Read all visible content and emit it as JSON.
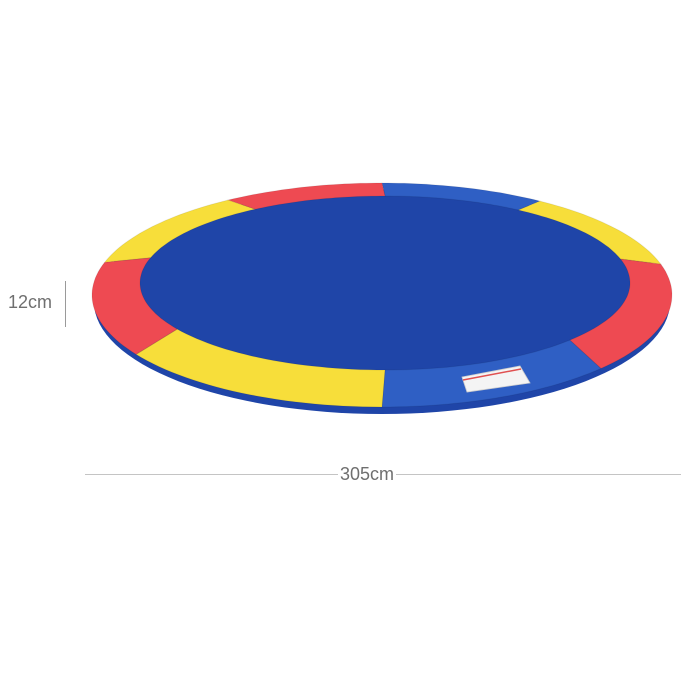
{
  "product": {
    "segments": [
      {
        "color": "blue",
        "from_deg": -90,
        "to_deg": -57
      },
      {
        "color": "yellow",
        "from_deg": -57,
        "to_deg": -16
      },
      {
        "color": "red",
        "from_deg": -16,
        "to_deg": 41
      },
      {
        "color": "blue",
        "from_deg": 41,
        "to_deg": 90
      },
      {
        "color": "yellow",
        "from_deg": 90,
        "to_deg": 148
      },
      {
        "color": "red",
        "from_deg": 148,
        "to_deg": 197
      },
      {
        "color": "yellow",
        "from_deg": 197,
        "to_deg": 238
      },
      {
        "color": "red",
        "from_deg": 238,
        "to_deg": 270
      }
    ],
    "colors": {
      "red": "#ee4a52",
      "yellow": "#f7de3a",
      "blue": "#2f5fc4",
      "edge": "#1f45a8"
    }
  },
  "dimensions": {
    "height_label": "12cm",
    "width_label": "305cm"
  }
}
